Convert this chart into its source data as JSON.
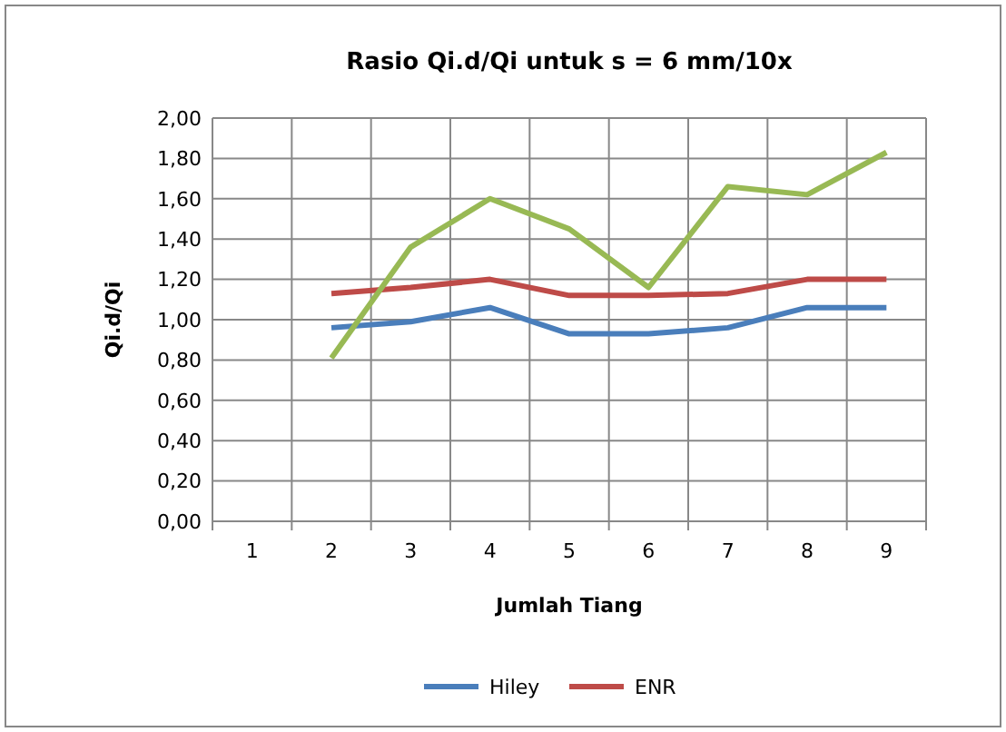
{
  "chart_data": {
    "type": "line",
    "title": "Rasio Qi.d/Qi untuk s = 6 mm/10x",
    "xlabel": "Jumlah Tiang",
    "ylabel": "Qi.d/Qi",
    "categories": [
      "1",
      "2",
      "3",
      "4",
      "5",
      "6",
      "7",
      "8",
      "9"
    ],
    "series": [
      {
        "name": "Hiley",
        "color": "#4a7ebb",
        "values": [
          null,
          0.96,
          0.99,
          1.06,
          0.93,
          0.93,
          0.96,
          1.06,
          1.06
        ]
      },
      {
        "name": "ENR",
        "color": "#be4b48",
        "values": [
          null,
          1.13,
          1.16,
          1.2,
          1.12,
          1.12,
          1.13,
          1.2,
          1.2
        ]
      },
      {
        "color": "#98b954",
        "values": [
          null,
          0.81,
          1.36,
          1.6,
          1.45,
          1.16,
          1.66,
          1.62,
          1.83
        ]
      }
    ],
    "ylim": [
      0,
      2
    ],
    "yticks": [
      {
        "value": 0,
        "label": "0,00"
      },
      {
        "value": 0.2,
        "label": "0,20"
      },
      {
        "value": 0.4,
        "label": "0,40"
      },
      {
        "value": 0.6,
        "label": "0,60"
      },
      {
        "value": 0.8,
        "label": "0,80"
      },
      {
        "value": 1,
        "label": "1,00"
      },
      {
        "value": 1.2,
        "label": "1,20"
      },
      {
        "value": 1.4,
        "label": "1,40"
      },
      {
        "value": 1.6,
        "label": "1,60"
      },
      {
        "value": 1.8,
        "label": "1,80"
      },
      {
        "value": 2,
        "label": "2,00"
      }
    ],
    "grid": true,
    "legend": "bottom",
    "marker": "none",
    "line_style": "solid"
  }
}
